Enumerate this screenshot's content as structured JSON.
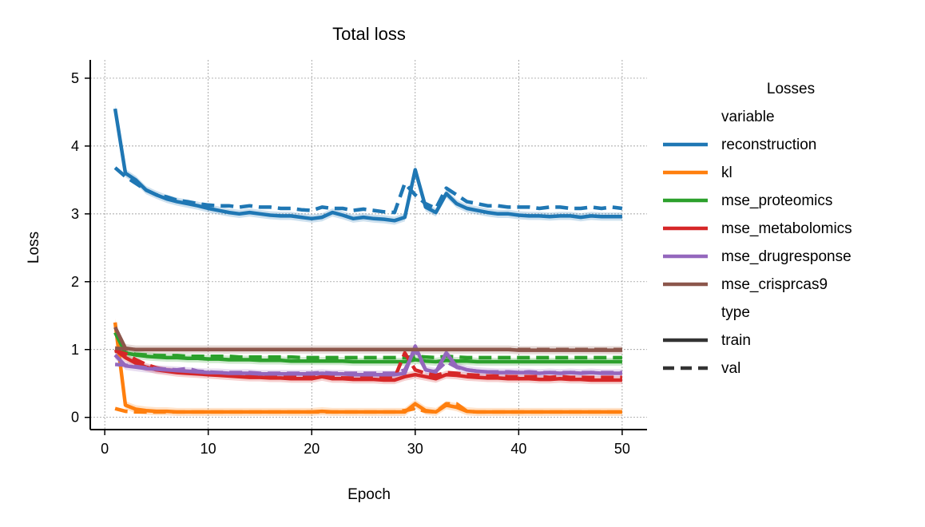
{
  "chart_data": {
    "type": "line",
    "title": "Total loss",
    "xlabel": "Epoch",
    "ylabel": "Loss",
    "xlim": [
      -1.4,
      52.4
    ],
    "ylim": [
      -0.18,
      5.27
    ],
    "xticks": [
      0,
      10,
      20,
      30,
      40,
      50
    ],
    "yticks": [
      0,
      1,
      2,
      3,
      4,
      5
    ],
    "grid": true,
    "legend": {
      "placement": "right",
      "title": "Losses",
      "hue_title": "variable",
      "style_title": "type",
      "styles": [
        {
          "name": "train",
          "dash": "solid"
        },
        {
          "name": "val",
          "dash": "dashed"
        }
      ]
    },
    "x": [
      1,
      2,
      3,
      4,
      5,
      6,
      7,
      8,
      9,
      10,
      11,
      12,
      13,
      14,
      15,
      16,
      17,
      18,
      19,
      20,
      21,
      22,
      23,
      24,
      25,
      26,
      27,
      28,
      29,
      30,
      31,
      32,
      33,
      34,
      35,
      36,
      37,
      38,
      39,
      40,
      41,
      42,
      43,
      44,
      45,
      46,
      47,
      48,
      49,
      50
    ],
    "series": [
      {
        "name": "reconstruction",
        "color": "#1f77b4",
        "train": [
          4.55,
          3.6,
          3.5,
          3.35,
          3.28,
          3.22,
          3.18,
          3.15,
          3.12,
          3.08,
          3.05,
          3.02,
          3.0,
          3.02,
          3.0,
          2.98,
          2.97,
          2.97,
          2.95,
          2.93,
          2.95,
          3.02,
          2.98,
          2.93,
          2.95,
          2.93,
          2.92,
          2.9,
          2.95,
          3.65,
          3.1,
          3.02,
          3.3,
          3.15,
          3.08,
          3.05,
          3.02,
          3.0,
          3.0,
          2.98,
          2.97,
          2.97,
          2.96,
          2.97,
          2.97,
          2.95,
          2.97,
          2.96,
          2.96,
          2.96
        ],
        "val": [
          3.68,
          3.55,
          3.45,
          3.35,
          3.28,
          3.25,
          3.2,
          3.18,
          3.15,
          3.13,
          3.12,
          3.12,
          3.1,
          3.12,
          3.1,
          3.1,
          3.08,
          3.08,
          3.06,
          3.05,
          3.1,
          3.08,
          3.08,
          3.05,
          3.07,
          3.05,
          3.03,
          3.02,
          3.45,
          3.28,
          3.15,
          3.08,
          3.38,
          3.28,
          3.18,
          3.15,
          3.12,
          3.12,
          3.1,
          3.1,
          3.1,
          3.08,
          3.1,
          3.1,
          3.08,
          3.08,
          3.1,
          3.08,
          3.1,
          3.08
        ]
      },
      {
        "name": "kl",
        "color": "#ff7f0e",
        "train": [
          1.4,
          0.18,
          0.12,
          0.1,
          0.09,
          0.09,
          0.08,
          0.08,
          0.08,
          0.08,
          0.08,
          0.08,
          0.08,
          0.08,
          0.08,
          0.08,
          0.08,
          0.08,
          0.08,
          0.08,
          0.09,
          0.08,
          0.08,
          0.08,
          0.08,
          0.08,
          0.08,
          0.08,
          0.08,
          0.2,
          0.1,
          0.08,
          0.18,
          0.15,
          0.09,
          0.08,
          0.08,
          0.08,
          0.08,
          0.08,
          0.08,
          0.08,
          0.08,
          0.08,
          0.08,
          0.08,
          0.08,
          0.08,
          0.08,
          0.08
        ],
        "val": [
          0.13,
          0.09,
          0.08,
          0.08,
          0.08,
          0.08,
          0.08,
          0.08,
          0.08,
          0.08,
          0.08,
          0.08,
          0.08,
          0.08,
          0.08,
          0.08,
          0.08,
          0.08,
          0.08,
          0.08,
          0.08,
          0.08,
          0.08,
          0.08,
          0.08,
          0.08,
          0.08,
          0.08,
          0.1,
          0.13,
          0.09,
          0.08,
          0.2,
          0.2,
          0.09,
          0.08,
          0.08,
          0.08,
          0.08,
          0.08,
          0.08,
          0.08,
          0.08,
          0.08,
          0.08,
          0.08,
          0.08,
          0.08,
          0.08,
          0.08
        ]
      },
      {
        "name": "mse_proteomics",
        "color": "#2ca02c",
        "train": [
          1.25,
          0.95,
          0.92,
          0.9,
          0.89,
          0.88,
          0.88,
          0.87,
          0.87,
          0.86,
          0.86,
          0.85,
          0.85,
          0.85,
          0.84,
          0.84,
          0.84,
          0.83,
          0.83,
          0.83,
          0.83,
          0.83,
          0.83,
          0.82,
          0.82,
          0.82,
          0.82,
          0.82,
          0.82,
          0.85,
          0.83,
          0.82,
          0.84,
          0.83,
          0.83,
          0.82,
          0.82,
          0.82,
          0.82,
          0.82,
          0.82,
          0.82,
          0.82,
          0.82,
          0.82,
          0.82,
          0.82,
          0.82,
          0.82,
          0.82
        ],
        "val": [
          0.98,
          0.95,
          0.93,
          0.92,
          0.91,
          0.91,
          0.91,
          0.9,
          0.9,
          0.9,
          0.9,
          0.9,
          0.89,
          0.89,
          0.89,
          0.89,
          0.89,
          0.89,
          0.88,
          0.88,
          0.88,
          0.88,
          0.88,
          0.88,
          0.88,
          0.88,
          0.88,
          0.88,
          0.88,
          0.9,
          0.89,
          0.88,
          0.9,
          0.89,
          0.88,
          0.88,
          0.88,
          0.88,
          0.88,
          0.88,
          0.88,
          0.88,
          0.88,
          0.88,
          0.88,
          0.88,
          0.88,
          0.88,
          0.88,
          0.88
        ]
      },
      {
        "name": "mse_metabolomics",
        "color": "#d62728",
        "train": [
          1.0,
          0.88,
          0.8,
          0.74,
          0.7,
          0.68,
          0.66,
          0.65,
          0.64,
          0.63,
          0.62,
          0.61,
          0.6,
          0.59,
          0.59,
          0.58,
          0.58,
          0.57,
          0.57,
          0.57,
          0.6,
          0.57,
          0.57,
          0.56,
          0.56,
          0.56,
          0.55,
          0.55,
          0.6,
          0.63,
          0.6,
          0.57,
          0.63,
          0.62,
          0.6,
          0.59,
          0.58,
          0.58,
          0.57,
          0.57,
          0.57,
          0.56,
          0.56,
          0.57,
          0.56,
          0.56,
          0.55,
          0.55,
          0.55,
          0.55
        ],
        "val": [
          0.98,
          0.94,
          0.85,
          0.78,
          0.73,
          0.7,
          0.68,
          0.66,
          0.65,
          0.64,
          0.63,
          0.62,
          0.62,
          0.61,
          0.61,
          0.6,
          0.6,
          0.6,
          0.59,
          0.59,
          0.6,
          0.59,
          0.58,
          0.58,
          0.58,
          0.58,
          0.58,
          0.58,
          0.95,
          0.7,
          0.65,
          0.62,
          0.66,
          0.65,
          0.63,
          0.62,
          0.61,
          0.61,
          0.6,
          0.6,
          0.6,
          0.6,
          0.59,
          0.6,
          0.59,
          0.59,
          0.59,
          0.59,
          0.59,
          0.59
        ]
      },
      {
        "name": "mse_drugresponse",
        "color": "#9467bd",
        "train": [
          0.92,
          0.76,
          0.74,
          0.72,
          0.71,
          0.7,
          0.69,
          0.68,
          0.67,
          0.66,
          0.66,
          0.65,
          0.65,
          0.65,
          0.64,
          0.64,
          0.64,
          0.64,
          0.64,
          0.64,
          0.65,
          0.64,
          0.64,
          0.63,
          0.63,
          0.63,
          0.63,
          0.63,
          0.65,
          1.05,
          0.7,
          0.67,
          0.95,
          0.75,
          0.7,
          0.68,
          0.67,
          0.66,
          0.66,
          0.66,
          0.66,
          0.65,
          0.66,
          0.65,
          0.66,
          0.65,
          0.66,
          0.65,
          0.65,
          0.65
        ],
        "val": [
          0.78,
          0.77,
          0.75,
          0.73,
          0.72,
          0.71,
          0.7,
          0.72,
          0.68,
          0.67,
          0.66,
          0.66,
          0.66,
          0.66,
          0.65,
          0.65,
          0.65,
          0.65,
          0.65,
          0.65,
          0.66,
          0.65,
          0.65,
          0.65,
          0.65,
          0.65,
          0.65,
          0.65,
          0.7,
          1.0,
          0.7,
          0.68,
          0.82,
          0.74,
          0.7,
          0.68,
          0.67,
          0.67,
          0.67,
          0.66,
          0.67,
          0.66,
          0.66,
          0.66,
          0.66,
          0.66,
          0.66,
          0.66,
          0.66,
          0.66
        ]
      },
      {
        "name": "mse_crisprcas9",
        "color": "#8c564b",
        "train": [
          1.33,
          1.02,
          1.0,
          1.0,
          1.0,
          1.0,
          1.0,
          1.0,
          1.0,
          1.0,
          1.0,
          1.0,
          1.0,
          1.0,
          1.0,
          1.0,
          1.0,
          1.0,
          1.0,
          1.0,
          1.0,
          1.0,
          1.0,
          1.0,
          1.0,
          1.0,
          1.0,
          1.0,
          1.0,
          1.0,
          1.0,
          1.0,
          1.0,
          1.0,
          1.0,
          1.0,
          1.0,
          1.0,
          1.0,
          0.99,
          0.99,
          0.99,
          0.99,
          0.99,
          0.99,
          0.99,
          0.99,
          0.99,
          0.99,
          0.99
        ],
        "val": [
          1.02,
          1.01,
          1.0,
          1.0,
          1.0,
          1.0,
          1.0,
          1.0,
          1.0,
          1.0,
          1.0,
          1.0,
          1.0,
          1.0,
          1.0,
          1.0,
          1.0,
          1.0,
          1.0,
          1.0,
          1.0,
          1.0,
          1.0,
          1.0,
          1.0,
          1.0,
          1.0,
          1.0,
          1.0,
          1.0,
          1.0,
          1.0,
          1.0,
          1.0,
          1.0,
          1.0,
          1.0,
          1.0,
          1.0,
          1.0,
          1.0,
          1.0,
          1.0,
          1.0,
          1.0,
          1.0,
          1.0,
          1.0,
          1.0,
          1.0
        ]
      }
    ]
  }
}
